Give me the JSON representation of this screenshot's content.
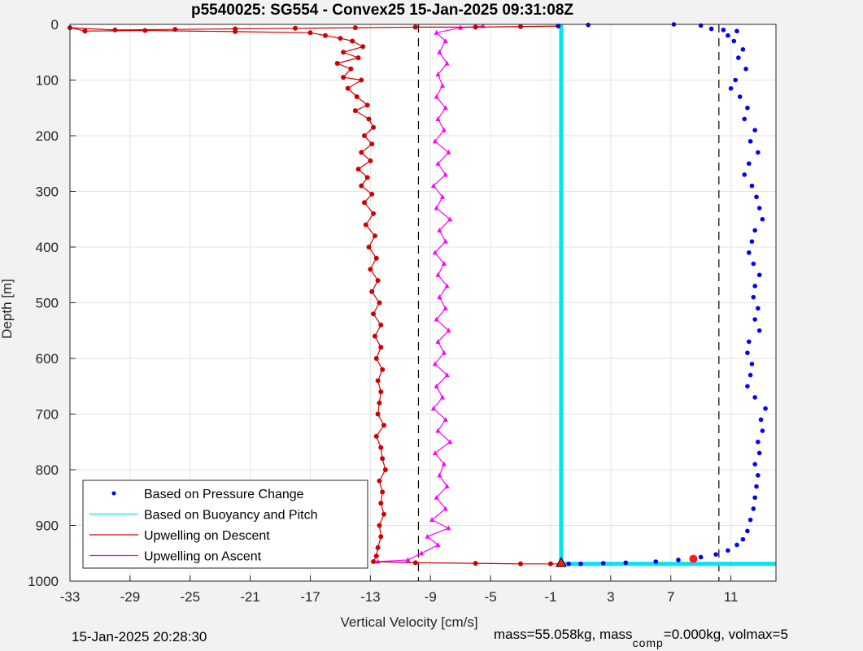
{
  "chart_data": {
    "type": "scatter",
    "title": "p5540025: SG554 - Convex25 15-Jan-2025 09:31:08Z",
    "xlabel": "Vertical Velocity [cm/s]",
    "ylabel": "Depth [m]",
    "xlim": [
      -33,
      14
    ],
    "ylim": [
      0,
      1000
    ],
    "y_reversed": true,
    "grid": true,
    "x_ticks": [
      -33,
      -29,
      -25,
      -21,
      -17,
      -13,
      -9,
      -5,
      -1,
      3,
      7,
      11
    ],
    "y_ticks": [
      0,
      100,
      200,
      300,
      400,
      500,
      600,
      700,
      800,
      900,
      1000
    ],
    "vlines_dashed": [
      -9.8,
      10.2
    ],
    "legend_position": "bottom-left",
    "series": [
      {
        "name": "Based on Pressure Change",
        "color": "#0000ff",
        "marker": "dot",
        "points": [
          [
            -0.5,
            3
          ],
          [
            1.5,
            1
          ],
          [
            7.2,
            0
          ],
          [
            9,
            2
          ],
          [
            9.7,
            8
          ],
          [
            10.5,
            10
          ],
          [
            11.4,
            12
          ],
          [
            10.8,
            20
          ],
          [
            11.2,
            30
          ],
          [
            11.8,
            45
          ],
          [
            11.5,
            60
          ],
          [
            12.0,
            80
          ],
          [
            11.3,
            100
          ],
          [
            11.0,
            115
          ],
          [
            11.6,
            130
          ],
          [
            12.1,
            150
          ],
          [
            11.9,
            170
          ],
          [
            12.6,
            190
          ],
          [
            12.3,
            210
          ],
          [
            12.8,
            230
          ],
          [
            12.2,
            250
          ],
          [
            11.9,
            270
          ],
          [
            12.4,
            290
          ],
          [
            12.7,
            310
          ],
          [
            12.9,
            330
          ],
          [
            13.1,
            350
          ],
          [
            12.6,
            370
          ],
          [
            12.4,
            390
          ],
          [
            12.2,
            410
          ],
          [
            12.5,
            430
          ],
          [
            12.9,
            450
          ],
          [
            12.6,
            470
          ],
          [
            12.5,
            490
          ],
          [
            12.8,
            510
          ],
          [
            12.6,
            530
          ],
          [
            12.9,
            550
          ],
          [
            12.2,
            570
          ],
          [
            12.1,
            590
          ],
          [
            12.4,
            610
          ],
          [
            12.3,
            630
          ],
          [
            12.1,
            650
          ],
          [
            12.6,
            670
          ],
          [
            13.3,
            690
          ],
          [
            13.0,
            710
          ],
          [
            13.1,
            730
          ],
          [
            12.8,
            750
          ],
          [
            12.9,
            770
          ],
          [
            12.6,
            790
          ],
          [
            12.8,
            810
          ],
          [
            12.7,
            830
          ],
          [
            12.6,
            850
          ],
          [
            12.5,
            870
          ],
          [
            12.3,
            890
          ],
          [
            12.1,
            910
          ],
          [
            11.8,
            925
          ],
          [
            11.4,
            935
          ],
          [
            10.8,
            945
          ],
          [
            10.0,
            952
          ],
          [
            9.0,
            957
          ],
          [
            7.5,
            962
          ],
          [
            6.0,
            965
          ],
          [
            4.0,
            967
          ],
          [
            2.5,
            968
          ],
          [
            1.0,
            969
          ],
          [
            0.2,
            969
          ]
        ]
      },
      {
        "name": "Based on Buoyancy and Pitch",
        "color": "#00e5ee",
        "marker": "line",
        "points": [
          [
            -0.3,
            0
          ],
          [
            -0.3,
            969
          ],
          [
            14,
            969
          ]
        ]
      },
      {
        "name": "Upwelling on Descent",
        "color": "#d00000",
        "marker": "circle-line",
        "points": [
          [
            -0.5,
            3
          ],
          [
            -3,
            4
          ],
          [
            -6,
            5
          ],
          [
            -10,
            5
          ],
          [
            -14,
            6
          ],
          [
            -18,
            7
          ],
          [
            -22,
            8
          ],
          [
            -26,
            9
          ],
          [
            -30,
            10
          ],
          [
            -33,
            6
          ],
          [
            -32,
            12
          ],
          [
            -28,
            11
          ],
          [
            -22,
            13
          ],
          [
            -17,
            15
          ],
          [
            -16,
            20
          ],
          [
            -15,
            25
          ],
          [
            -14.2,
            30
          ],
          [
            -13.5,
            40
          ],
          [
            -14.8,
            50
          ],
          [
            -13.8,
            60
          ],
          [
            -15.2,
            70
          ],
          [
            -14.3,
            80
          ],
          [
            -14.8,
            95
          ],
          [
            -13.6,
            100
          ],
          [
            -14.5,
            115
          ],
          [
            -13.9,
            130
          ],
          [
            -13.2,
            145
          ],
          [
            -14.0,
            155
          ],
          [
            -13.1,
            170
          ],
          [
            -12.8,
            185
          ],
          [
            -13.4,
            200
          ],
          [
            -12.9,
            215
          ],
          [
            -13.6,
            230
          ],
          [
            -13.0,
            245
          ],
          [
            -13.8,
            260
          ],
          [
            -13.2,
            275
          ],
          [
            -13.6,
            290
          ],
          [
            -12.9,
            305
          ],
          [
            -13.4,
            320
          ],
          [
            -12.8,
            340
          ],
          [
            -13.3,
            360
          ],
          [
            -12.7,
            380
          ],
          [
            -13.1,
            400
          ],
          [
            -12.6,
            420
          ],
          [
            -13.0,
            440
          ],
          [
            -12.5,
            460
          ],
          [
            -12.9,
            480
          ],
          [
            -12.4,
            500
          ],
          [
            -12.8,
            520
          ],
          [
            -12.3,
            540
          ],
          [
            -12.7,
            560
          ],
          [
            -12.3,
            580
          ],
          [
            -12.6,
            600
          ],
          [
            -12.2,
            620
          ],
          [
            -12.5,
            640
          ],
          [
            -12.3,
            660
          ],
          [
            -12.4,
            680
          ],
          [
            -12.5,
            700
          ],
          [
            -12.1,
            720
          ],
          [
            -12.6,
            740
          ],
          [
            -12.3,
            760
          ],
          [
            -12.2,
            780
          ],
          [
            -12.0,
            800
          ],
          [
            -12.4,
            820
          ],
          [
            -12.2,
            840
          ],
          [
            -12.3,
            860
          ],
          [
            -12.1,
            880
          ],
          [
            -12.4,
            900
          ],
          [
            -12.3,
            920
          ],
          [
            -12.5,
            940
          ],
          [
            -12.6,
            955
          ],
          [
            -12.8,
            965
          ],
          [
            -10,
            967
          ],
          [
            -6,
            968
          ],
          [
            -3,
            969
          ],
          [
            -1,
            969
          ],
          [
            -0.3,
            969
          ]
        ]
      },
      {
        "name": "Upwelling on Ascent",
        "color": "#ff00ff",
        "marker": "triangle-line",
        "points": [
          [
            -12.5,
            965
          ],
          [
            -10.5,
            962
          ],
          [
            -9.6,
            950
          ],
          [
            -8.5,
            935
          ],
          [
            -9.2,
            920
          ],
          [
            -7.8,
            905
          ],
          [
            -8.9,
            890
          ],
          [
            -8.0,
            870
          ],
          [
            -8.6,
            850
          ],
          [
            -7.9,
            830
          ],
          [
            -8.4,
            810
          ],
          [
            -8.1,
            790
          ],
          [
            -8.7,
            770
          ],
          [
            -7.7,
            750
          ],
          [
            -8.5,
            730
          ],
          [
            -8.0,
            710
          ],
          [
            -8.8,
            690
          ],
          [
            -8.2,
            670
          ],
          [
            -8.6,
            650
          ],
          [
            -7.9,
            630
          ],
          [
            -8.7,
            610
          ],
          [
            -8.1,
            590
          ],
          [
            -8.5,
            570
          ],
          [
            -7.8,
            550
          ],
          [
            -8.6,
            530
          ],
          [
            -8.0,
            510
          ],
          [
            -8.4,
            490
          ],
          [
            -7.9,
            470
          ],
          [
            -8.5,
            450
          ],
          [
            -8.1,
            430
          ],
          [
            -8.7,
            410
          ],
          [
            -8.0,
            390
          ],
          [
            -8.4,
            370
          ],
          [
            -7.7,
            350
          ],
          [
            -8.6,
            330
          ],
          [
            -8.2,
            310
          ],
          [
            -8.8,
            290
          ],
          [
            -8.0,
            270
          ],
          [
            -8.5,
            250
          ],
          [
            -7.8,
            230
          ],
          [
            -8.7,
            210
          ],
          [
            -8.1,
            190
          ],
          [
            -8.5,
            170
          ],
          [
            -8.0,
            150
          ],
          [
            -8.6,
            130
          ],
          [
            -8.2,
            110
          ],
          [
            -8.5,
            90
          ],
          [
            -7.9,
            70
          ],
          [
            -8.4,
            50
          ],
          [
            -8.0,
            30
          ],
          [
            -8.6,
            15
          ],
          [
            -7.0,
            6
          ],
          [
            -5.5,
            3
          ]
        ]
      }
    ],
    "markers": {
      "red_circle": [
        8.5,
        960
      ],
      "red_triangle": [
        -0.3,
        968
      ]
    }
  },
  "footer": {
    "timestamp": "15-Jan-2025 20:28:30",
    "mass_text_1": "mass=55.058kg, mass",
    "mass_sub": "comp",
    "mass_text_2": "=0.000kg, volmax=5"
  }
}
